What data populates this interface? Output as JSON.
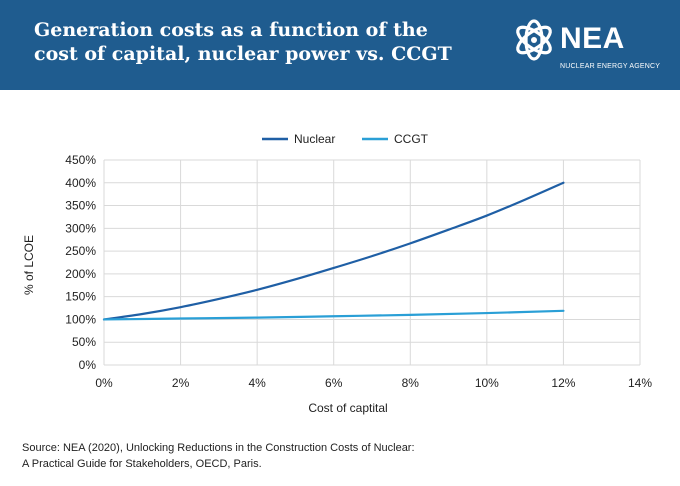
{
  "header": {
    "title_line1": "Generation costs as a function of the",
    "title_line2": "cost of capital, nuclear power vs. CCGT",
    "logo_name": "NEA",
    "logo_subtitle": "NUCLEAR ENERGY AGENCY"
  },
  "source": {
    "line1": "Source: NEA (2020), Unlocking Reductions in the Construction Costs of Nuclear:",
    "line2": "A Practical Guide for Stakeholders, OECD, Paris."
  },
  "colors": {
    "header_bg": "#1f5c8f",
    "nuclear": "#1f5fa5",
    "ccgt": "#2a9fd6",
    "grid": "#d9d9d9"
  },
  "chart_data": {
    "type": "line",
    "title": "",
    "xlabel": "Cost of captital",
    "ylabel": "% of LCOE",
    "xlim": [
      0,
      14
    ],
    "ylim": [
      0,
      450
    ],
    "x_ticks": [
      0,
      2,
      4,
      6,
      8,
      10,
      12,
      14
    ],
    "x_tick_labels": [
      "0%",
      "2%",
      "4%",
      "6%",
      "8%",
      "10%",
      "12%",
      "14%"
    ],
    "y_ticks": [
      0,
      50,
      100,
      150,
      200,
      250,
      300,
      350,
      400,
      450
    ],
    "y_tick_labels": [
      "0%",
      "50%",
      "100%",
      "150%",
      "200%",
      "250%",
      "300%",
      "350%",
      "400%",
      "450%"
    ],
    "legend_position": "top-center",
    "grid": true,
    "series": [
      {
        "name": "Nuclear",
        "x": [
          0,
          1,
          2,
          3,
          4,
          5,
          6,
          7,
          8,
          9,
          10,
          11,
          12
        ],
        "values": [
          100,
          112,
          127,
          145,
          165,
          188,
          213,
          239,
          267,
          297,
          328,
          363,
          400
        ]
      },
      {
        "name": "CCGT",
        "x": [
          0,
          2,
          4,
          6,
          8,
          10,
          12
        ],
        "values": [
          100,
          102,
          104,
          107,
          110,
          114,
          119
        ]
      }
    ]
  }
}
